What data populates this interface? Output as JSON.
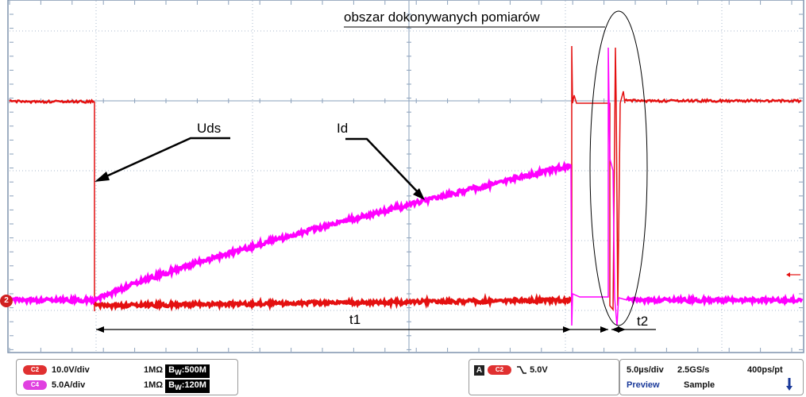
{
  "annotations": {
    "region": "obszar dokonywanych pomiarów",
    "uds": "Uds",
    "id": "Id",
    "t1": "t1",
    "t2": "t2"
  },
  "ground_marker": "2",
  "channels": [
    {
      "badge": "C2",
      "scale": "10.0V/div",
      "coupling": "1MΩ",
      "bw_prefix": "B",
      "bw_sub": "W",
      "bw_value": ":500M",
      "color": "#e03030"
    },
    {
      "badge": "C4",
      "scale": "5.0A/div",
      "coupling": "1MΩ",
      "bw_prefix": "B",
      "bw_sub": "W",
      "bw_value": ":120M",
      "color": "#e040e0"
    }
  ],
  "trigger": {
    "mode": "A",
    "source": "C2",
    "slope_icon": "falling-edge-icon",
    "level": "5.0V"
  },
  "timebase": {
    "time_div": "5.0µs/div",
    "sample_rate": "2.5GS/s",
    "resolution": "400ps/pt",
    "mode_label": "Preview",
    "acq_mode": "Sample"
  },
  "colors": {
    "uds_trace": "#e41010",
    "id_trace": "#ff00ff",
    "grid": "#a9b9cc",
    "frame": "#7f93ad"
  }
}
